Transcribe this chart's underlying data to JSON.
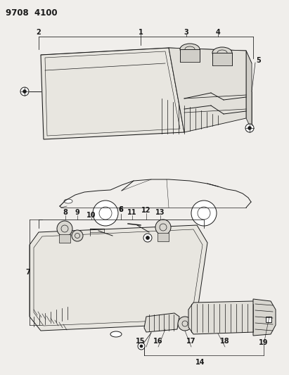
{
  "title": "9708  4100",
  "bg_color": "#f0eeeb",
  "line_color": "#1a1a1a",
  "title_fontsize": 8.5,
  "label_fontsize": 7
}
